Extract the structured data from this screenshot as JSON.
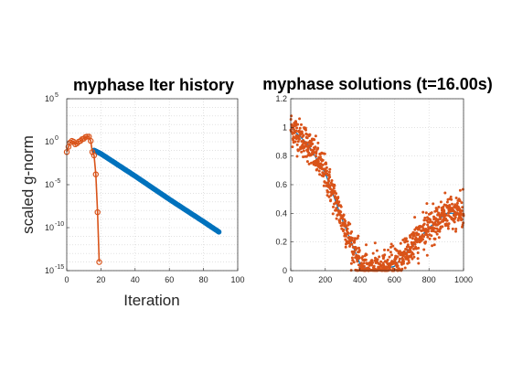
{
  "chart_data": [
    {
      "type": "line",
      "title": "myphase Iter history",
      "xlabel": "Iteration",
      "ylabel": "scaled g-norm",
      "yscale": "log",
      "xlim": [
        0,
        100
      ],
      "ylim_exponent": [
        -15,
        5
      ],
      "xticks": [
        "0",
        "20",
        "40",
        "60",
        "80",
        "100"
      ],
      "yticks": [
        {
          "base": "10",
          "exp": "5",
          "value": 5
        },
        {
          "base": "10",
          "exp": "0",
          "value": 0
        },
        {
          "base": "10",
          "exp": "-5",
          "value": -5
        },
        {
          "base": "10",
          "exp": "-10",
          "value": -10
        },
        {
          "base": "10",
          "exp": "-15",
          "value": -15
        }
      ],
      "grid": true,
      "series": [
        {
          "color": "#0072BD",
          "marker": "filled-circle",
          "description": "blue iteration history, log10 values",
          "x_start": 16,
          "x_end": 89,
          "log10_points": [
            [
              16,
              -1.0
            ],
            [
              20,
              -1.4
            ],
            [
              40,
              -4.0
            ],
            [
              60,
              -6.7
            ],
            [
              80,
              -9.3
            ],
            [
              89,
              -10.5
            ]
          ]
        },
        {
          "color": "#D95319",
          "marker": "open-circle",
          "description": "orange iteration history, log10 values",
          "points": [
            [
              0,
              -1.2
            ],
            [
              1,
              -0.6
            ],
            [
              2,
              -0.1
            ],
            [
              3,
              0.1
            ],
            [
              4,
              0.0
            ],
            [
              5,
              -0.3
            ],
            [
              6,
              -0.2
            ],
            [
              7,
              0.0
            ],
            [
              8,
              0.1
            ],
            [
              9,
              0.3
            ],
            [
              10,
              0.35
            ],
            [
              11,
              0.55
            ],
            [
              12,
              0.6
            ],
            [
              13,
              0.6
            ],
            [
              14,
              0.1
            ],
            [
              15,
              -1.2
            ],
            [
              16,
              -1.6
            ],
            [
              17,
              -3.8
            ],
            [
              18,
              -8.2
            ],
            [
              19,
              -14.0
            ]
          ]
        }
      ]
    },
    {
      "type": "scatter",
      "title": "myphase solutions (t=16.00s)",
      "xlim": [
        0,
        1000
      ],
      "ylim": [
        0,
        1.2
      ],
      "xticks": [
        "0",
        "200",
        "400",
        "600",
        "800",
        "1000"
      ],
      "yticks": [
        "0",
        "0.2",
        "0.4",
        "0.6",
        "0.8",
        "1",
        "1.2"
      ],
      "grid": true,
      "series": [
        {
          "color": "#D95319",
          "marker": "dot",
          "description": "noisy samples around a V-shaped curve",
          "trend_points": [
            [
              0,
              1.0
            ],
            [
              100,
              0.88
            ],
            [
              200,
              0.68
            ],
            [
              300,
              0.35
            ],
            [
              400,
              0.05
            ],
            [
              450,
              0.0
            ],
            [
              500,
              0.0
            ],
            [
              600,
              0.03
            ],
            [
              700,
              0.17
            ],
            [
              800,
              0.3
            ],
            [
              900,
              0.4
            ],
            [
              1000,
              0.4
            ]
          ],
          "noise_sd": 0.06,
          "count": 1000
        },
        {
          "color": "#0072BD",
          "marker": "line",
          "description": "smooth blue curve hidden beneath scatter",
          "points": [
            [
              0,
              1.0
            ],
            [
              100,
              0.88
            ],
            [
              200,
              0.68
            ],
            [
              300,
              0.35
            ],
            [
              400,
              0.05
            ],
            [
              450,
              0.0
            ],
            [
              500,
              0.0
            ],
            [
              600,
              0.03
            ],
            [
              700,
              0.17
            ],
            [
              800,
              0.3
            ],
            [
              900,
              0.4
            ],
            [
              1000,
              0.4
            ]
          ]
        }
      ]
    }
  ]
}
